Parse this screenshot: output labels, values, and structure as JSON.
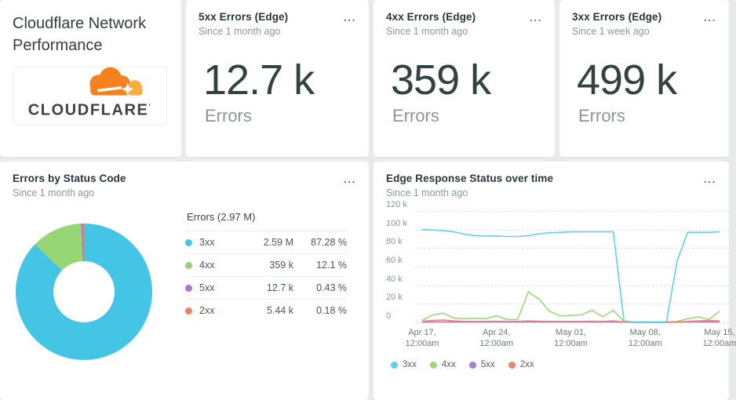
{
  "ui": {
    "menu_glyph": "..."
  },
  "header": {
    "title": "Cloudflare Network Performance",
    "logo_text": "CLOUDFLARE",
    "logo_mark": "'"
  },
  "stat_cards": [
    {
      "title": "5xx Errors (Edge)",
      "since": "Since 1 month ago",
      "value": "12.7 k",
      "label": "Errors"
    },
    {
      "title": "4xx Errors (Edge)",
      "since": "Since 1 month ago",
      "value": "359 k",
      "label": "Errors"
    },
    {
      "title": "3xx Errors (Edge)",
      "since": "Since 1 week ago",
      "value": "499 k",
      "label": "Errors"
    }
  ],
  "donut_card": {
    "title": "Errors by Status Code",
    "since": "Since 1 month ago"
  },
  "timeseries_card": {
    "title": "Edge Response Status over time",
    "since": "Since 1 month ago"
  },
  "chart_data": [
    {
      "type": "pie",
      "title": "Errors by Status Code",
      "total_label": "Errors (2.97 M)",
      "slices": [
        {
          "label": "3xx",
          "value": "2.59 M",
          "pct": 87.28,
          "pct_label": "87.28 %",
          "color": "#45c5e5"
        },
        {
          "label": "4xx",
          "value": "359 k",
          "pct": 12.1,
          "pct_label": "12.1 %",
          "color": "#97d675"
        },
        {
          "label": "5xx",
          "value": "12.7 k",
          "pct": 0.43,
          "pct_label": "0.43 %",
          "color": "#a978d2"
        },
        {
          "label": "2xx",
          "value": "5.44 k",
          "pct": 0.18,
          "pct_label": "0.18 %",
          "color": "#ef7e62"
        }
      ],
      "legend_position": "right",
      "donut": true
    },
    {
      "type": "line",
      "title": "Edge Response Status over time",
      "ylim": [
        0,
        120
      ],
      "y_unit": "k",
      "yticks": [
        "120 k",
        "100 k",
        "80 k",
        "60 k",
        "40 k",
        "20 k",
        "0"
      ],
      "x_labels": [
        [
          "Apr 17,",
          "12:00am"
        ],
        [
          "Apr 24,",
          "12:00am"
        ],
        [
          "May 01,",
          "12:00am"
        ],
        [
          "May 08,",
          "12:00am"
        ],
        [
          "May 15,",
          "12:00am"
        ]
      ],
      "grid": "dashed",
      "legend_position": "bottom",
      "series": [
        {
          "name": "3xx",
          "color": "#62cfec",
          "values": [
            100,
            99.5,
            99,
            97.5,
            95,
            93.5,
            93,
            93,
            92.5,
            92.5,
            93.5,
            95.5,
            96.5,
            97,
            97.5,
            97.5,
            97.5,
            97.5,
            97.5,
            1.5,
            0.4,
            0.4,
            0.4,
            0.4,
            66,
            97,
            97,
            97,
            97.5
          ]
        },
        {
          "name": "4xx",
          "color": "#9ad87a",
          "values": [
            2,
            8,
            10,
            4.5,
            4,
            4.5,
            4,
            7,
            3,
            3,
            33,
            25,
            12,
            7,
            7.5,
            8,
            13,
            6,
            13,
            1,
            0.3,
            0.3,
            0.3,
            0.3,
            1,
            4,
            6,
            3,
            12
          ]
        },
        {
          "name": "5xx",
          "color": "#ab7ad4",
          "values": [
            0.5,
            0.5,
            0.5,
            0.5,
            0.5,
            0.5,
            0.5,
            0.5,
            0.5,
            0.5,
            0.5,
            0.5,
            0.5,
            0.5,
            0.5,
            0.5,
            0.5,
            0.5,
            0.5,
            0.3,
            0.1,
            0.1,
            0.1,
            0.1,
            0.3,
            0.5,
            0.5,
            0.5,
            0.5
          ]
        },
        {
          "name": "2xx",
          "color": "#f0826a",
          "values": [
            1,
            2,
            2.5,
            1.5,
            1,
            1,
            1,
            1.2,
            1,
            1,
            1.5,
            1.2,
            1,
            1,
            1,
            1,
            1.2,
            1,
            1.5,
            0.5,
            0.2,
            0.2,
            0.2,
            0.2,
            0.5,
            1,
            1.5,
            2,
            1.5
          ]
        }
      ],
      "draw_order": [
        2,
        1,
        3,
        0
      ]
    }
  ]
}
